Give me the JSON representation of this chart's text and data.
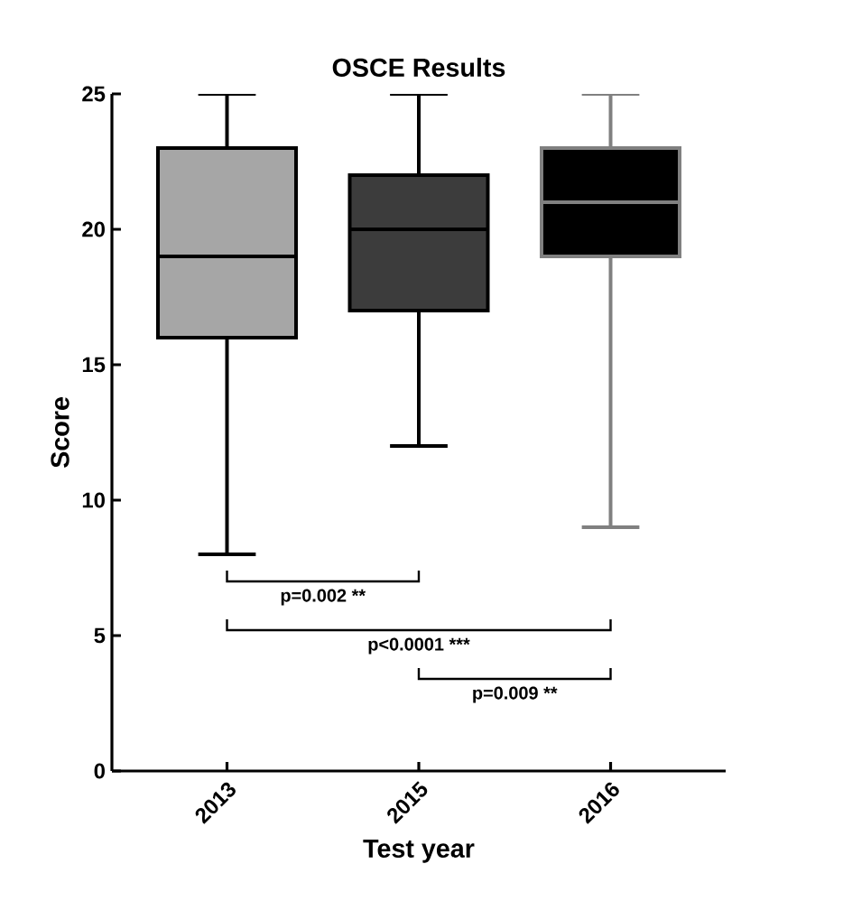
{
  "chart_data": {
    "type": "box",
    "title": "OSCE Results",
    "xlabel": "Test year",
    "ylabel": "Score",
    "categories": [
      "2013",
      "2015",
      "2016"
    ],
    "colors": [
      "#a6a6a6",
      "#3c3c3c",
      "#000000"
    ],
    "boxes": [
      {
        "low": 8,
        "q1": 16,
        "median": 19,
        "q3": 23,
        "high": 25
      },
      {
        "low": 12,
        "q1": 17,
        "median": 20,
        "q3": 22,
        "high": 25
      },
      {
        "low": 9,
        "q1": 19,
        "median": 21,
        "q3": 23,
        "high": 25
      }
    ],
    "ylim": [
      0,
      25
    ],
    "yticks": [
      0,
      5,
      10,
      15,
      20,
      25
    ],
    "grid": false,
    "annotations": [
      "p=0.002 **",
      "p<0.0001 ***",
      "p=0.009 **"
    ]
  }
}
